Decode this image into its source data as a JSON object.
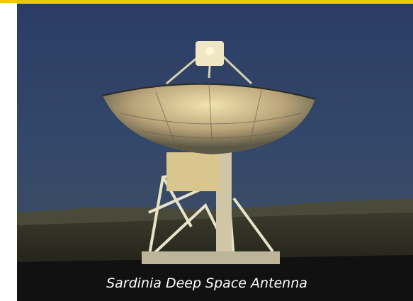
{
  "caption": "Sardinia Deep Space Antenna"
}
